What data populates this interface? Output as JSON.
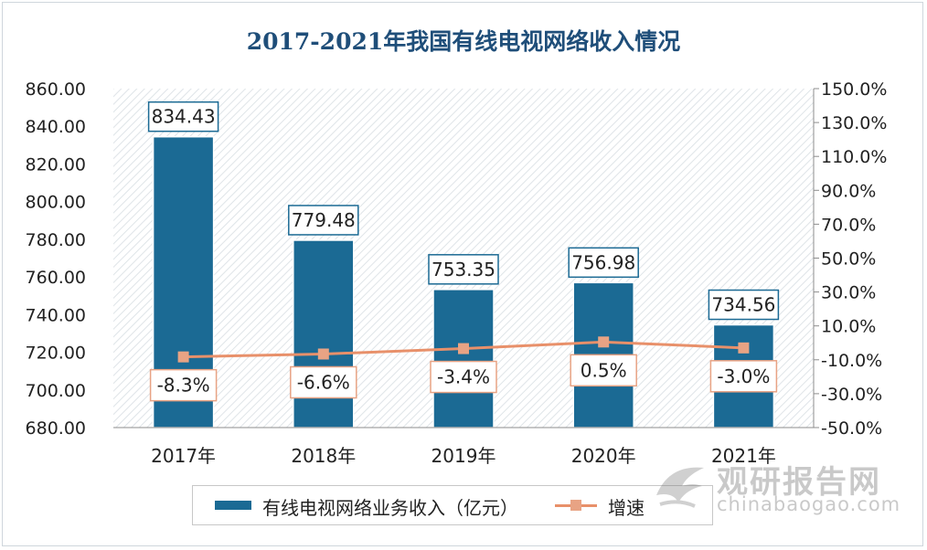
{
  "chart_data": {
    "type": "bar",
    "title": "2017-2021年我国有线电视网络收入情况",
    "categories": [
      "2017年",
      "2018年",
      "2019年",
      "2020年",
      "2021年"
    ],
    "series": [
      {
        "name": "有线电视网络业务收入（亿元）",
        "type": "bar",
        "axis": "left",
        "values": [
          834.43,
          779.48,
          753.35,
          756.98,
          734.56
        ],
        "labels": [
          "834.43",
          "779.48",
          "753.35",
          "756.98",
          "734.56"
        ]
      },
      {
        "name": "增速",
        "type": "line",
        "axis": "right",
        "values": [
          -8.3,
          -6.6,
          -3.4,
          0.5,
          -3.0
        ],
        "labels": [
          "-8.3%",
          "-6.6%",
          "-3.4%",
          "0.5%",
          "-3.0%"
        ]
      }
    ],
    "y_left": {
      "min": 680,
      "max": 860,
      "ticks": [
        "680.00",
        "700.00",
        "720.00",
        "740.00",
        "760.00",
        "780.00",
        "800.00",
        "820.00",
        "840.00",
        "860.00"
      ]
    },
    "y_right": {
      "min": -50,
      "max": 150,
      "ticks": [
        "-50.0%",
        "-30.0%",
        "-10.0%",
        "10.0%",
        "30.0%",
        "50.0%",
        "70.0%",
        "90.0%",
        "110.0%",
        "130.0%",
        "150.0%"
      ]
    },
    "legend_position": "bottom"
  },
  "colors": {
    "bar": "#1b6a94",
    "line": "#e8906a",
    "marker": "#e8a384",
    "title": "#1f4e79"
  },
  "watermark": {
    "brand": "观研报告网",
    "domain": "chinabaogao.com",
    "icon": "bird-logo-icon"
  }
}
